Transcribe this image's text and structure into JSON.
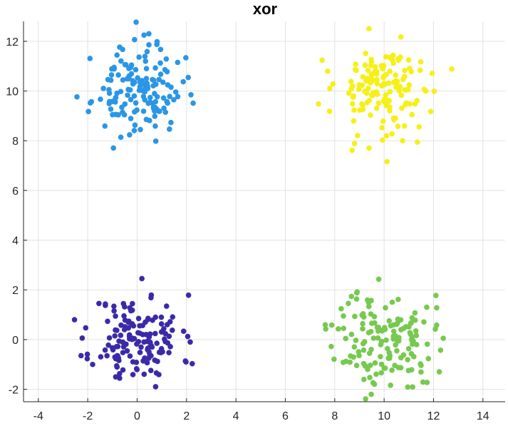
{
  "chart_data": {
    "type": "scatter",
    "title": "xor",
    "xlabel": "",
    "ylabel": "",
    "xlim": [
      -4.6,
      14.9
    ],
    "ylim": [
      -2.5,
      12.8
    ],
    "xticks": [
      -4,
      -2,
      0,
      2,
      4,
      6,
      8,
      10,
      12,
      14
    ],
    "yticks": [
      -2,
      0,
      2,
      4,
      6,
      8,
      10,
      12
    ],
    "grid": true,
    "legend": "none",
    "clusters": [
      {
        "color": "#3b2aa8",
        "center": [
          0,
          0
        ],
        "spread": 0.9,
        "count": 150,
        "seed": 11
      },
      {
        "color": "#2b96e6",
        "center": [
          0,
          10
        ],
        "spread": 0.9,
        "count": 150,
        "seed": 23
      },
      {
        "color": "#77c94f",
        "center": [
          10,
          0
        ],
        "spread": 1.0,
        "count": 150,
        "seed": 37
      },
      {
        "color": "#f6f018",
        "center": [
          10,
          10
        ],
        "spread": 1.0,
        "count": 150,
        "seed": 53
      }
    ]
  }
}
